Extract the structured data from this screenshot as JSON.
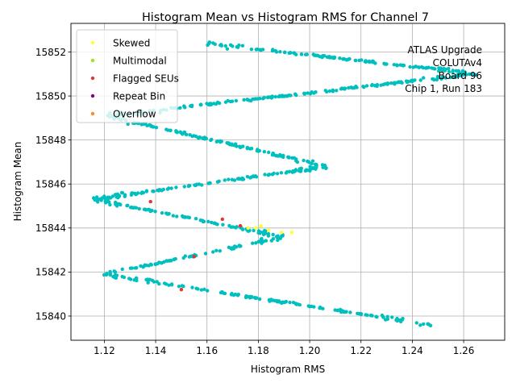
{
  "chart_data": {
    "type": "scatter",
    "title": "Histogram Mean vs Histogram RMS for Channel 7",
    "xlabel": "Histogram RMS",
    "ylabel": "Histogram Mean",
    "xlim": [
      1.107,
      1.276
    ],
    "ylim": [
      15838.9,
      15853.3
    ],
    "x_ticks": [
      1.12,
      1.14,
      1.16,
      1.18,
      1.2,
      1.22,
      1.24,
      1.26
    ],
    "x_tick_labels": [
      "1.12",
      "1.14",
      "1.16",
      "1.18",
      "1.20",
      "1.22",
      "1.24",
      "1.26"
    ],
    "y_ticks": [
      15840,
      15842,
      15844,
      15846,
      15848,
      15850,
      15852
    ],
    "y_tick_labels": [
      "15840",
      "15842",
      "15844",
      "15846",
      "15848",
      "15850",
      "15852"
    ],
    "grid": true,
    "legend_position": "top-left",
    "annotation": [
      "ATLAS Upgrade",
      "COLUTAv4",
      "Board 96",
      "Chip 1, Run 183"
    ],
    "main_color": "#00bfbf",
    "main_point_count": 900,
    "main_curve_vertices": [
      [
        1.247,
        15839.6
      ],
      [
        1.12,
        15841.9
      ],
      [
        1.19,
        15843.6
      ],
      [
        1.116,
        15845.3
      ],
      [
        1.207,
        15846.8
      ],
      [
        1.121,
        15849.1
      ],
      [
        1.265,
        15851.0
      ],
      [
        1.16,
        15852.4
      ]
    ],
    "series": [
      {
        "name": "Skewed",
        "color": "#ffff33",
        "points": [
          [
            1.176,
            15844.0
          ],
          [
            1.181,
            15844.1
          ],
          [
            1.184,
            15843.9
          ],
          [
            1.189,
            15843.8
          ],
          [
            1.193,
            15843.8
          ],
          [
            1.179,
            15844.0
          ]
        ]
      },
      {
        "name": "Multimodal",
        "color": "#99e619",
        "points": []
      },
      {
        "name": "Flagged SEUs",
        "color": "#e63333",
        "points": [
          [
            1.138,
            15845.2
          ],
          [
            1.166,
            15844.4
          ],
          [
            1.173,
            15844.1
          ],
          [
            1.155,
            15842.7
          ],
          [
            1.15,
            15841.2
          ]
        ]
      },
      {
        "name": "Repeat Bin",
        "color": "#800080",
        "points": []
      },
      {
        "name": "Overflow",
        "color": "#ff8c1a",
        "points": []
      }
    ]
  }
}
